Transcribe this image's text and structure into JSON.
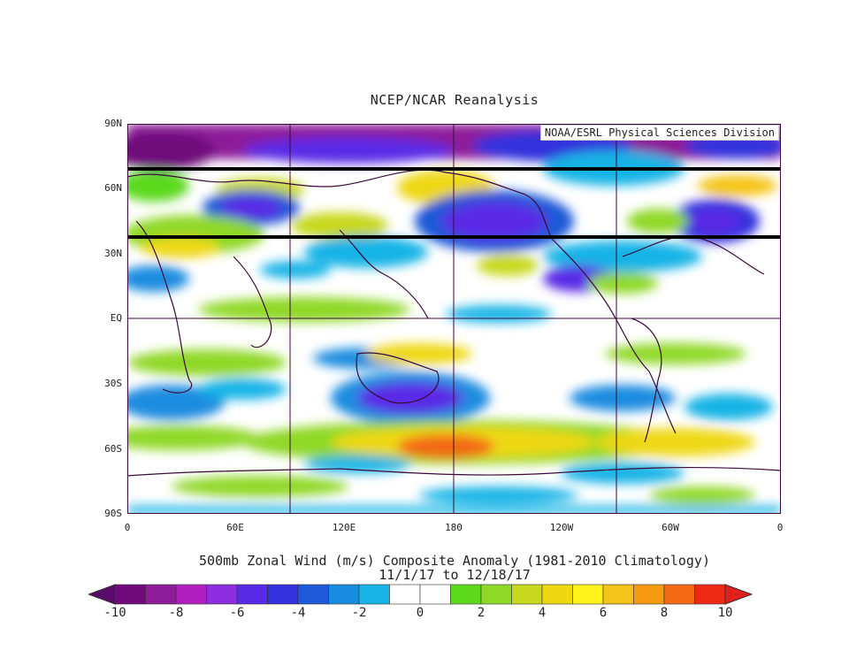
{
  "header": {
    "title": "NCEP/NCAR Reanalysis",
    "credit": "NOAA/ESRL Physical Sciences Division"
  },
  "axes": {
    "lat_labels": [
      "90N",
      "60N",
      "30N",
      "EQ",
      "30S",
      "60S",
      "90S"
    ],
    "lon_labels": [
      "0",
      "60E",
      "120E",
      "180",
      "120W",
      "60W",
      "0"
    ]
  },
  "caption": {
    "line1": "500mb Zonal Wind (m/s) Composite Anomaly (1981-2010 Climatology)",
    "line2": "11/1/17  to 12/18/17"
  },
  "colorbar": {
    "labels": [
      "-10",
      "-8",
      "-6",
      "-4",
      "-2",
      "0",
      "2",
      "4",
      "6",
      "8",
      "10"
    ],
    "colors": [
      "#6e0a7a",
      "#8e1d9a",
      "#b21fc1",
      "#8c2de0",
      "#5a2be6",
      "#3333dd",
      "#1d59d8",
      "#1a8ce0",
      "#18b4e6",
      "#ffffff",
      "#ffffff",
      "#5cd91a",
      "#8fd828",
      "#c7d81f",
      "#eed812",
      "#fff21b",
      "#f4c418",
      "#f69a12",
      "#f36914",
      "#ee2a17"
    ],
    "end_left": "#5a0a68",
    "end_right": "#e0201a"
  },
  "overlay": {
    "lines_latitude": [
      68,
      37
    ],
    "line_color": "#000000"
  }
}
